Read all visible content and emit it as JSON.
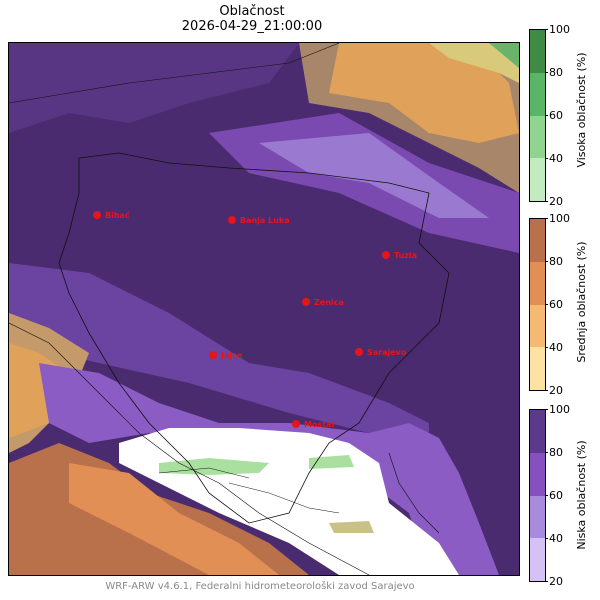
{
  "title": "Oblačnost",
  "subtitle": "2026-04-29_21:00:00",
  "footer": "WRF-ARW v4.6.1, Federalni hidrometeorološki zavod Sarajevo",
  "cities": [
    {
      "name": "Bihać"
    },
    {
      "name": "Banja Luka"
    },
    {
      "name": "Tuzla"
    },
    {
      "name": "Zenica"
    },
    {
      "name": "Jajce"
    },
    {
      "name": "Sarajevo"
    },
    {
      "name": "Mostar"
    }
  ],
  "colorbars": [
    {
      "label": "Visoka oblačnost (%)",
      "ticks": [
        "100",
        "80",
        "60",
        "40",
        "20"
      ],
      "colors": [
        "#3f8a45",
        "#5bb566",
        "#8fd48f",
        "#c2ecbf"
      ]
    },
    {
      "label": "Srednja oblačnost (%)",
      "ticks": [
        "100",
        "80",
        "60",
        "40",
        "20"
      ],
      "colors": [
        "#b8714a",
        "#e28f55",
        "#f5b973",
        "#fde3a3"
      ]
    },
    {
      "label": "Niska oblačnost (%)",
      "ticks": [
        "100",
        "80",
        "60",
        "40",
        "20"
      ],
      "colors": [
        "#5b3a8e",
        "#8451bf",
        "#a98bde",
        "#d3c2f3"
      ]
    }
  ],
  "colors": {
    "city_marker": "#e8141c",
    "deep_cloud": "#4a2a6e"
  }
}
